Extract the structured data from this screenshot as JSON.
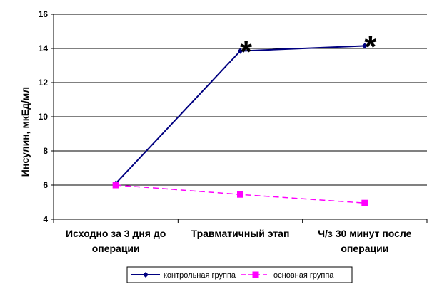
{
  "chart_data": {
    "type": "line",
    "title": "",
    "ylabel": "Инсулин, мкЕд/мл",
    "xlabel": "",
    "ylim": [
      4,
      16
    ],
    "yticks": [
      4,
      6,
      8,
      10,
      12,
      14,
      16
    ],
    "ytick_labels": [
      "4",
      "6",
      "8",
      "10",
      "12",
      "14",
      "16"
    ],
    "grid": "horizontal",
    "categories": [
      [
        "Исходно за 3 дня до",
        "операции"
      ],
      [
        "Травматичный этап"
      ],
      [
        "Ч/з 30 минут после",
        "операции"
      ]
    ],
    "series": [
      {
        "name": "контрольная группа",
        "values": [
          6.1,
          13.85,
          14.15
        ],
        "color": "#000080",
        "line_style": "solid",
        "marker": "diamond"
      },
      {
        "name": "основная группа",
        "values": [
          6.0,
          5.45,
          4.95
        ],
        "color": "#ff00ff",
        "line_style": "dashed",
        "marker": "square"
      }
    ],
    "annotations": [
      {
        "text": "*",
        "category_index": 1
      },
      {
        "text": "*",
        "category_index": 2
      }
    ],
    "legend_position": "bottom"
  }
}
